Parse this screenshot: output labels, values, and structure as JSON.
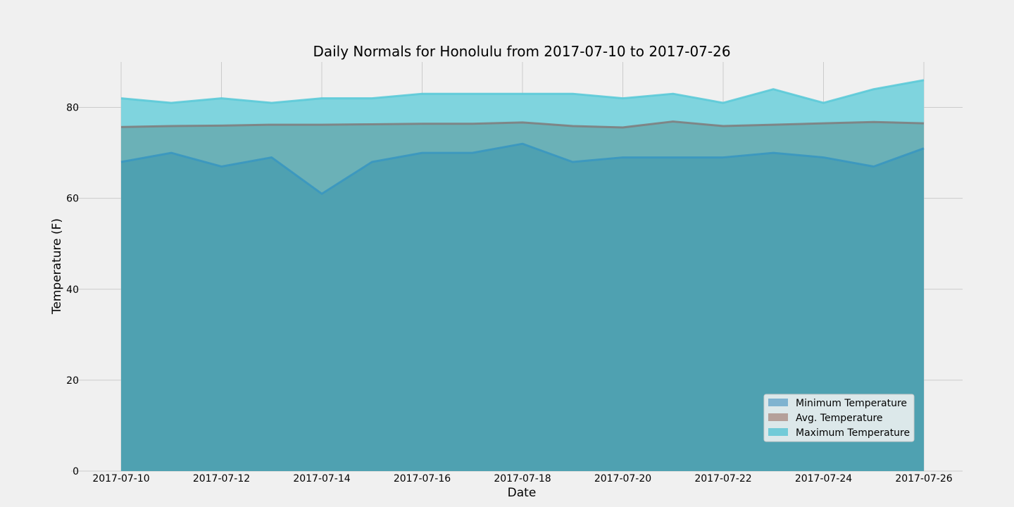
{
  "chart_data": {
    "type": "area",
    "title": "Daily Normals for Honolulu from 2017-07-10 to 2017-07-26",
    "xlabel": "Date",
    "ylabel": "Temperature (F)",
    "x": [
      "2017-07-10",
      "2017-07-11",
      "2017-07-12",
      "2017-07-13",
      "2017-07-14",
      "2017-07-15",
      "2017-07-16",
      "2017-07-17",
      "2017-07-18",
      "2017-07-19",
      "2017-07-20",
      "2017-07-21",
      "2017-07-22",
      "2017-07-23",
      "2017-07-24",
      "2017-07-25",
      "2017-07-26"
    ],
    "x_ticks": [
      "2017-07-10",
      "2017-07-12",
      "2017-07-14",
      "2017-07-16",
      "2017-07-18",
      "2017-07-20",
      "2017-07-22",
      "2017-07-24",
      "2017-07-26"
    ],
    "y_ticks": [
      0,
      20,
      40,
      60,
      80
    ],
    "ylim": [
      0,
      90
    ],
    "grid": true,
    "stacked": false,
    "legend_position": "lower-right",
    "series": [
      {
        "name": "Minimum Temperature",
        "color": "#30a2da",
        "values": [
          68,
          70,
          67,
          69,
          61,
          68,
          70,
          70,
          72,
          68,
          69,
          69,
          69,
          70,
          69,
          67,
          71
        ]
      },
      {
        "name": "Avg. Temperature",
        "color": "#fc4f30",
        "values": [
          75.7,
          75.9,
          76.0,
          76.2,
          76.2,
          76.3,
          76.4,
          76.4,
          76.7,
          75.9,
          75.6,
          76.9,
          75.9,
          76.2,
          76.5,
          76.8,
          76.5
        ]
      },
      {
        "name": "Maximum Temperature",
        "color": "#52c6d6",
        "values": [
          82,
          81,
          82,
          81,
          82,
          82,
          83,
          83,
          83,
          83,
          82,
          83,
          81,
          84,
          81,
          84,
          86
        ]
      }
    ],
    "colors": {
      "background": "#f0f0f0",
      "grid": "#cbcbcb",
      "min_fill": "#4fa1b1",
      "min_line": "#3a97c0",
      "avg_fill": "#6bb1b7",
      "avg_line": "#808080",
      "max_fill": "#7fd4de",
      "max_line": "#5ccad8",
      "legend_min_swatch": "#7fb3d0",
      "legend_avg_swatch": "#b5a09a",
      "legend_max_swatch": "#72cbd8"
    }
  }
}
